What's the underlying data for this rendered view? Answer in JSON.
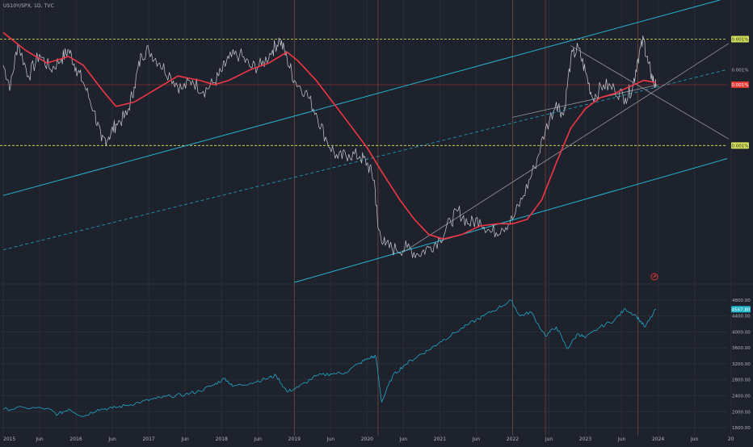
{
  "header": {
    "symbol_title": "US10Y/SPX, 1D, TVC"
  },
  "colors": {
    "background": "#1e222d",
    "grid": "#2a2e39",
    "ratio_line": "#c8cbd2",
    "moving_average": "#f23645",
    "channel": "#26b3d4",
    "fan_lines": "#9598a1",
    "level_lines": "#c9d14f",
    "spx_line": "#22a6c6",
    "price_tag": "#e53935",
    "level_tag": "#d4e157",
    "spx_tag": "#1fb5c9",
    "vertical_markers": "#8a5a3c"
  },
  "chart_data": [
    {
      "type": "line",
      "title": "US10Y/SPX, 1D, TVC",
      "x_ticks": [
        "2015",
        "Jun",
        "2016",
        "Jun",
        "2017",
        "Jun",
        "2018",
        "Jun",
        "2019",
        "Jun",
        "2020",
        "Jun",
        "2021",
        "Jun",
        "2022",
        "Jun",
        "2023",
        "Jun",
        "2024",
        "Jun",
        "20"
      ],
      "right_axis_labels": [
        "0.001%",
        "0.001%",
        "0.001%",
        "0.001%"
      ],
      "right_axis_tags": [
        {
          "text": "0.001%",
          "kind": "level",
          "at": 0.00117
        },
        {
          "text": "0.001%",
          "kind": "plain",
          "at": 0.00103
        },
        {
          "text": "0.001%",
          "kind": "price",
          "at": 0.00096
        },
        {
          "text": "0.001%",
          "kind": "level",
          "at": 0.00068
        }
      ],
      "ylim": [
        5e-05,
        0.00135
      ],
      "horizontal_levels": [
        0.00117,
        0.00068
      ],
      "series": [
        {
          "kind": "price",
          "points": [
            [
              2015.0,
              0.00105
            ],
            [
              2015.1,
              0.00095
            ],
            [
              2015.2,
              0.00115
            ],
            [
              2015.35,
              0.001
            ],
            [
              2015.5,
              0.0011
            ],
            [
              2015.65,
              0.00103
            ],
            [
              2015.8,
              0.00108
            ],
            [
              2015.9,
              0.00112
            ],
            [
              2016.0,
              0.00104
            ],
            [
              2016.1,
              0.00097
            ],
            [
              2016.25,
              0.00084
            ],
            [
              2016.35,
              0.0007
            ],
            [
              2016.45,
              0.00072
            ],
            [
              2016.55,
              0.00078
            ],
            [
              2016.7,
              0.00082
            ],
            [
              2016.8,
              0.00095
            ],
            [
              2016.9,
              0.0011
            ],
            [
              2017.0,
              0.00112
            ],
            [
              2017.15,
              0.00106
            ],
            [
              2017.3,
              0.001
            ],
            [
              2017.45,
              0.00094
            ],
            [
              2017.6,
              0.00098
            ],
            [
              2017.75,
              0.00093
            ],
            [
              2017.9,
              0.00097
            ],
            [
              2018.0,
              0.00102
            ],
            [
              2018.1,
              0.00108
            ],
            [
              2018.25,
              0.0011
            ],
            [
              2018.4,
              0.00104
            ],
            [
              2018.55,
              0.00105
            ],
            [
              2018.7,
              0.00112
            ],
            [
              2018.8,
              0.00117
            ],
            [
              2018.9,
              0.00108
            ],
            [
              2019.0,
              0.00098
            ],
            [
              2019.15,
              0.00093
            ],
            [
              2019.3,
              0.00083
            ],
            [
              2019.45,
              0.0007
            ],
            [
              2019.6,
              0.00062
            ],
            [
              2019.75,
              0.00064
            ],
            [
              2019.9,
              0.00063
            ],
            [
              2020.0,
              0.0006
            ],
            [
              2020.1,
              0.00052
            ],
            [
              2020.15,
              0.0003
            ],
            [
              2020.25,
              0.00022
            ],
            [
              2020.4,
              0.0002
            ],
            [
              2020.55,
              0.00021
            ],
            [
              2020.7,
              0.00018
            ],
            [
              2020.85,
              0.00021
            ],
            [
              2021.0,
              0.00025
            ],
            [
              2021.15,
              0.00033
            ],
            [
              2021.25,
              0.00038
            ],
            [
              2021.4,
              0.00032
            ],
            [
              2021.55,
              0.00034
            ],
            [
              2021.7,
              0.00028
            ],
            [
              2021.85,
              0.0003
            ],
            [
              2022.0,
              0.00034
            ],
            [
              2022.15,
              0.00045
            ],
            [
              2022.3,
              0.00058
            ],
            [
              2022.45,
              0.00075
            ],
            [
              2022.6,
              0.00088
            ],
            [
              2022.7,
              0.00082
            ],
            [
              2022.8,
              0.00108
            ],
            [
              2022.9,
              0.00113
            ],
            [
              2023.0,
              0.00102
            ],
            [
              2023.1,
              0.0009
            ],
            [
              2023.25,
              0.00096
            ],
            [
              2023.4,
              0.00094
            ],
            [
              2023.55,
              0.0009
            ],
            [
              2023.65,
              0.00095
            ],
            [
              2023.72,
              0.00108
            ],
            [
              2023.8,
              0.00117
            ],
            [
              2023.86,
              0.00106
            ],
            [
              2023.92,
              0.00099
            ],
            [
              2023.97,
              0.00095
            ]
          ]
        },
        {
          "kind": "moving_average",
          "points": [
            [
              2015.0,
              0.0012
            ],
            [
              2015.3,
              0.00112
            ],
            [
              2015.6,
              0.00106
            ],
            [
              2015.9,
              0.00109
            ],
            [
              2016.1,
              0.00105
            ],
            [
              2016.35,
              0.00094
            ],
            [
              2016.55,
              0.00086
            ],
            [
              2016.8,
              0.00088
            ],
            [
              2017.1,
              0.00094
            ],
            [
              2017.4,
              0.001
            ],
            [
              2017.7,
              0.00098
            ],
            [
              2017.9,
              0.00096
            ],
            [
              2018.1,
              0.00098
            ],
            [
              2018.4,
              0.00103
            ],
            [
              2018.65,
              0.00106
            ],
            [
              2018.9,
              0.00111
            ],
            [
              2019.05,
              0.00107
            ],
            [
              2019.3,
              0.00098
            ],
            [
              2019.55,
              0.00087
            ],
            [
              2019.8,
              0.00076
            ],
            [
              2020.0,
              0.00067
            ],
            [
              2020.2,
              0.00056
            ],
            [
              2020.45,
              0.00043
            ],
            [
              2020.65,
              0.00034
            ],
            [
              2020.85,
              0.00027
            ],
            [
              2021.05,
              0.00025
            ],
            [
              2021.3,
              0.00027
            ],
            [
              2021.55,
              0.00031
            ],
            [
              2021.8,
              0.00032
            ],
            [
              2022.0,
              0.00032
            ],
            [
              2022.2,
              0.00034
            ],
            [
              2022.4,
              0.00043
            ],
            [
              2022.6,
              0.0006
            ],
            [
              2022.8,
              0.00076
            ],
            [
              2023.0,
              0.00085
            ],
            [
              2023.2,
              0.0009
            ],
            [
              2023.4,
              0.00092
            ],
            [
              2023.6,
              0.00095
            ],
            [
              2023.8,
              0.00098
            ],
            [
              2023.97,
              0.00097
            ]
          ]
        }
      ]
    },
    {
      "type": "line",
      "series_label_tag": "4567.80",
      "y_ticks": [
        4800.0,
        4400.0,
        4000.0,
        3600.0,
        3200.0,
        2800.0,
        2400.0,
        2000.0,
        1600.0
      ],
      "ylim": [
        1500,
        5000
      ],
      "series": [
        {
          "kind": "spx",
          "points": [
            [
              2015.0,
              2060
            ],
            [
              2015.3,
              2100
            ],
            [
              2015.6,
              2080
            ],
            [
              2015.75,
              1930
            ],
            [
              2015.9,
              2070
            ],
            [
              2016.1,
              1880
            ],
            [
              2016.3,
              2060
            ],
            [
              2016.5,
              2090
            ],
            [
              2016.7,
              2160
            ],
            [
              2016.9,
              2250
            ],
            [
              2017.1,
              2330
            ],
            [
              2017.3,
              2390
            ],
            [
              2017.5,
              2430
            ],
            [
              2017.7,
              2520
            ],
            [
              2017.9,
              2680
            ],
            [
              2018.05,
              2840
            ],
            [
              2018.15,
              2640
            ],
            [
              2018.4,
              2720
            ],
            [
              2018.6,
              2820
            ],
            [
              2018.75,
              2910
            ],
            [
              2018.9,
              2500
            ],
            [
              2019.05,
              2610
            ],
            [
              2019.3,
              2900
            ],
            [
              2019.5,
              2950
            ],
            [
              2019.7,
              2980
            ],
            [
              2019.9,
              3220
            ],
            [
              2020.05,
              3370
            ],
            [
              2020.12,
              3380
            ],
            [
              2020.2,
              2240
            ],
            [
              2020.35,
              2900
            ],
            [
              2020.5,
              3150
            ],
            [
              2020.7,
              3400
            ],
            [
              2020.85,
              3550
            ],
            [
              2021.0,
              3750
            ],
            [
              2021.2,
              3970
            ],
            [
              2021.4,
              4200
            ],
            [
              2021.6,
              4400
            ],
            [
              2021.8,
              4600
            ],
            [
              2021.98,
              4790
            ],
            [
              2022.1,
              4400
            ],
            [
              2022.25,
              4500
            ],
            [
              2022.45,
              3900
            ],
            [
              2022.6,
              4130
            ],
            [
              2022.75,
              3580
            ],
            [
              2022.9,
              3960
            ],
            [
              2023.0,
              3850
            ],
            [
              2023.2,
              4120
            ],
            [
              2023.4,
              4300
            ],
            [
              2023.55,
              4580
            ],
            [
              2023.7,
              4400
            ],
            [
              2023.82,
              4120
            ],
            [
              2023.97,
              4570
            ]
          ]
        }
      ]
    }
  ]
}
